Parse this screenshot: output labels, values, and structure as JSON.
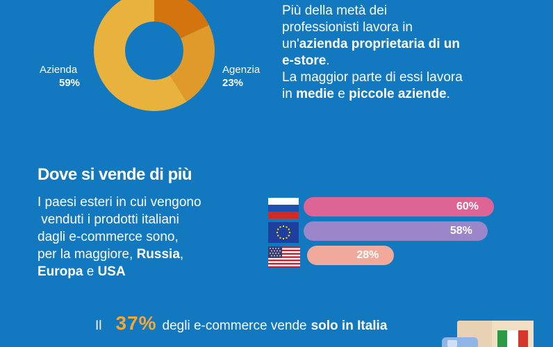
{
  "donut": {
    "segments": [
      {
        "value": 59,
        "color": "#e8b23c"
      },
      {
        "value": 23,
        "color": "#e09a2a"
      },
      {
        "value": 18,
        "color": "#d3740e"
      }
    ],
    "labels": {
      "left_name": "Azienda",
      "left_pct": "59%",
      "right_name": "Agenzia",
      "right_pct": "23%"
    }
  },
  "intro": {
    "line1": "Più della metà dei",
    "line2": "professionisti lavora in",
    "line3_prefix": "un'",
    "line3_bold": "azienda proprietaria di un",
    "line4_bold": "e-store",
    "line4_suffix": ".",
    "line5": "La maggior parte di essi lavora",
    "line6_prefix": "in ",
    "line6_bold1": "medie",
    "line6_mid": " e ",
    "line6_bold2": "piccole aziende",
    "line6_suffix": "."
  },
  "section": {
    "title": "Dove si vende di più",
    "desc_line1": "I paesi esteri in cui vengono",
    "desc_line2": " venduti i prodotti italiani",
    "desc_line3": "dagli e-commerce sono,",
    "desc_line4_prefix": "per la maggiore, ",
    "desc_line4_bold": "Russia",
    "desc_line4_suffix": ",",
    "desc_line5_bold1": "Europa",
    "desc_line5_mid": " e ",
    "desc_line5_bold2": "USA"
  },
  "chart_data": {
    "type": "bar",
    "categories": [
      "Russia",
      "Europa",
      "USA"
    ],
    "values": [
      60,
      58,
      28
    ],
    "value_labels": [
      "60%",
      "58%",
      "28%"
    ],
    "colors": [
      "#df6496",
      "#9a86c8",
      "#f0a99b"
    ]
  },
  "footer": {
    "prefix": "Il",
    "pct": "37%",
    "middle": "degli e-commerce vende",
    "bold": "solo in Italia"
  }
}
